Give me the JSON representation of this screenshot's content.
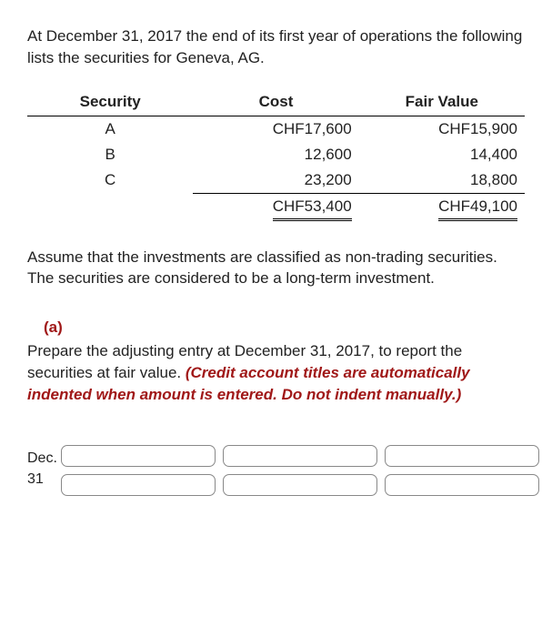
{
  "intro": "At December 31, 2017 the end of its first year of operations the following lists the securities for Geneva, AG.",
  "table": {
    "headers": {
      "c1": "Security",
      "c2": "Cost",
      "c3": "Fair Value"
    },
    "rows": [
      {
        "sec": "A",
        "cost": "CHF17,600",
        "fv": "CHF15,900"
      },
      {
        "sec": "B",
        "cost": "12,600",
        "fv": "14,400"
      },
      {
        "sec": "C",
        "cost": "23,200",
        "fv": "18,800"
      }
    ],
    "totals": {
      "cost": "CHF53,400",
      "fv": "CHF49,100"
    }
  },
  "assume": "Assume that the investments are classified as non-trading securities. The securities are considered to be a long-term investment.",
  "part_label": "(a)",
  "instruction_plain": "Prepare the adjusting entry at December 31, 2017, to report the securities at fair value. ",
  "instruction_hint": "(Credit account titles are automatically indented when amount is entered. Do not indent manually.)",
  "date_label": "Dec. 31"
}
